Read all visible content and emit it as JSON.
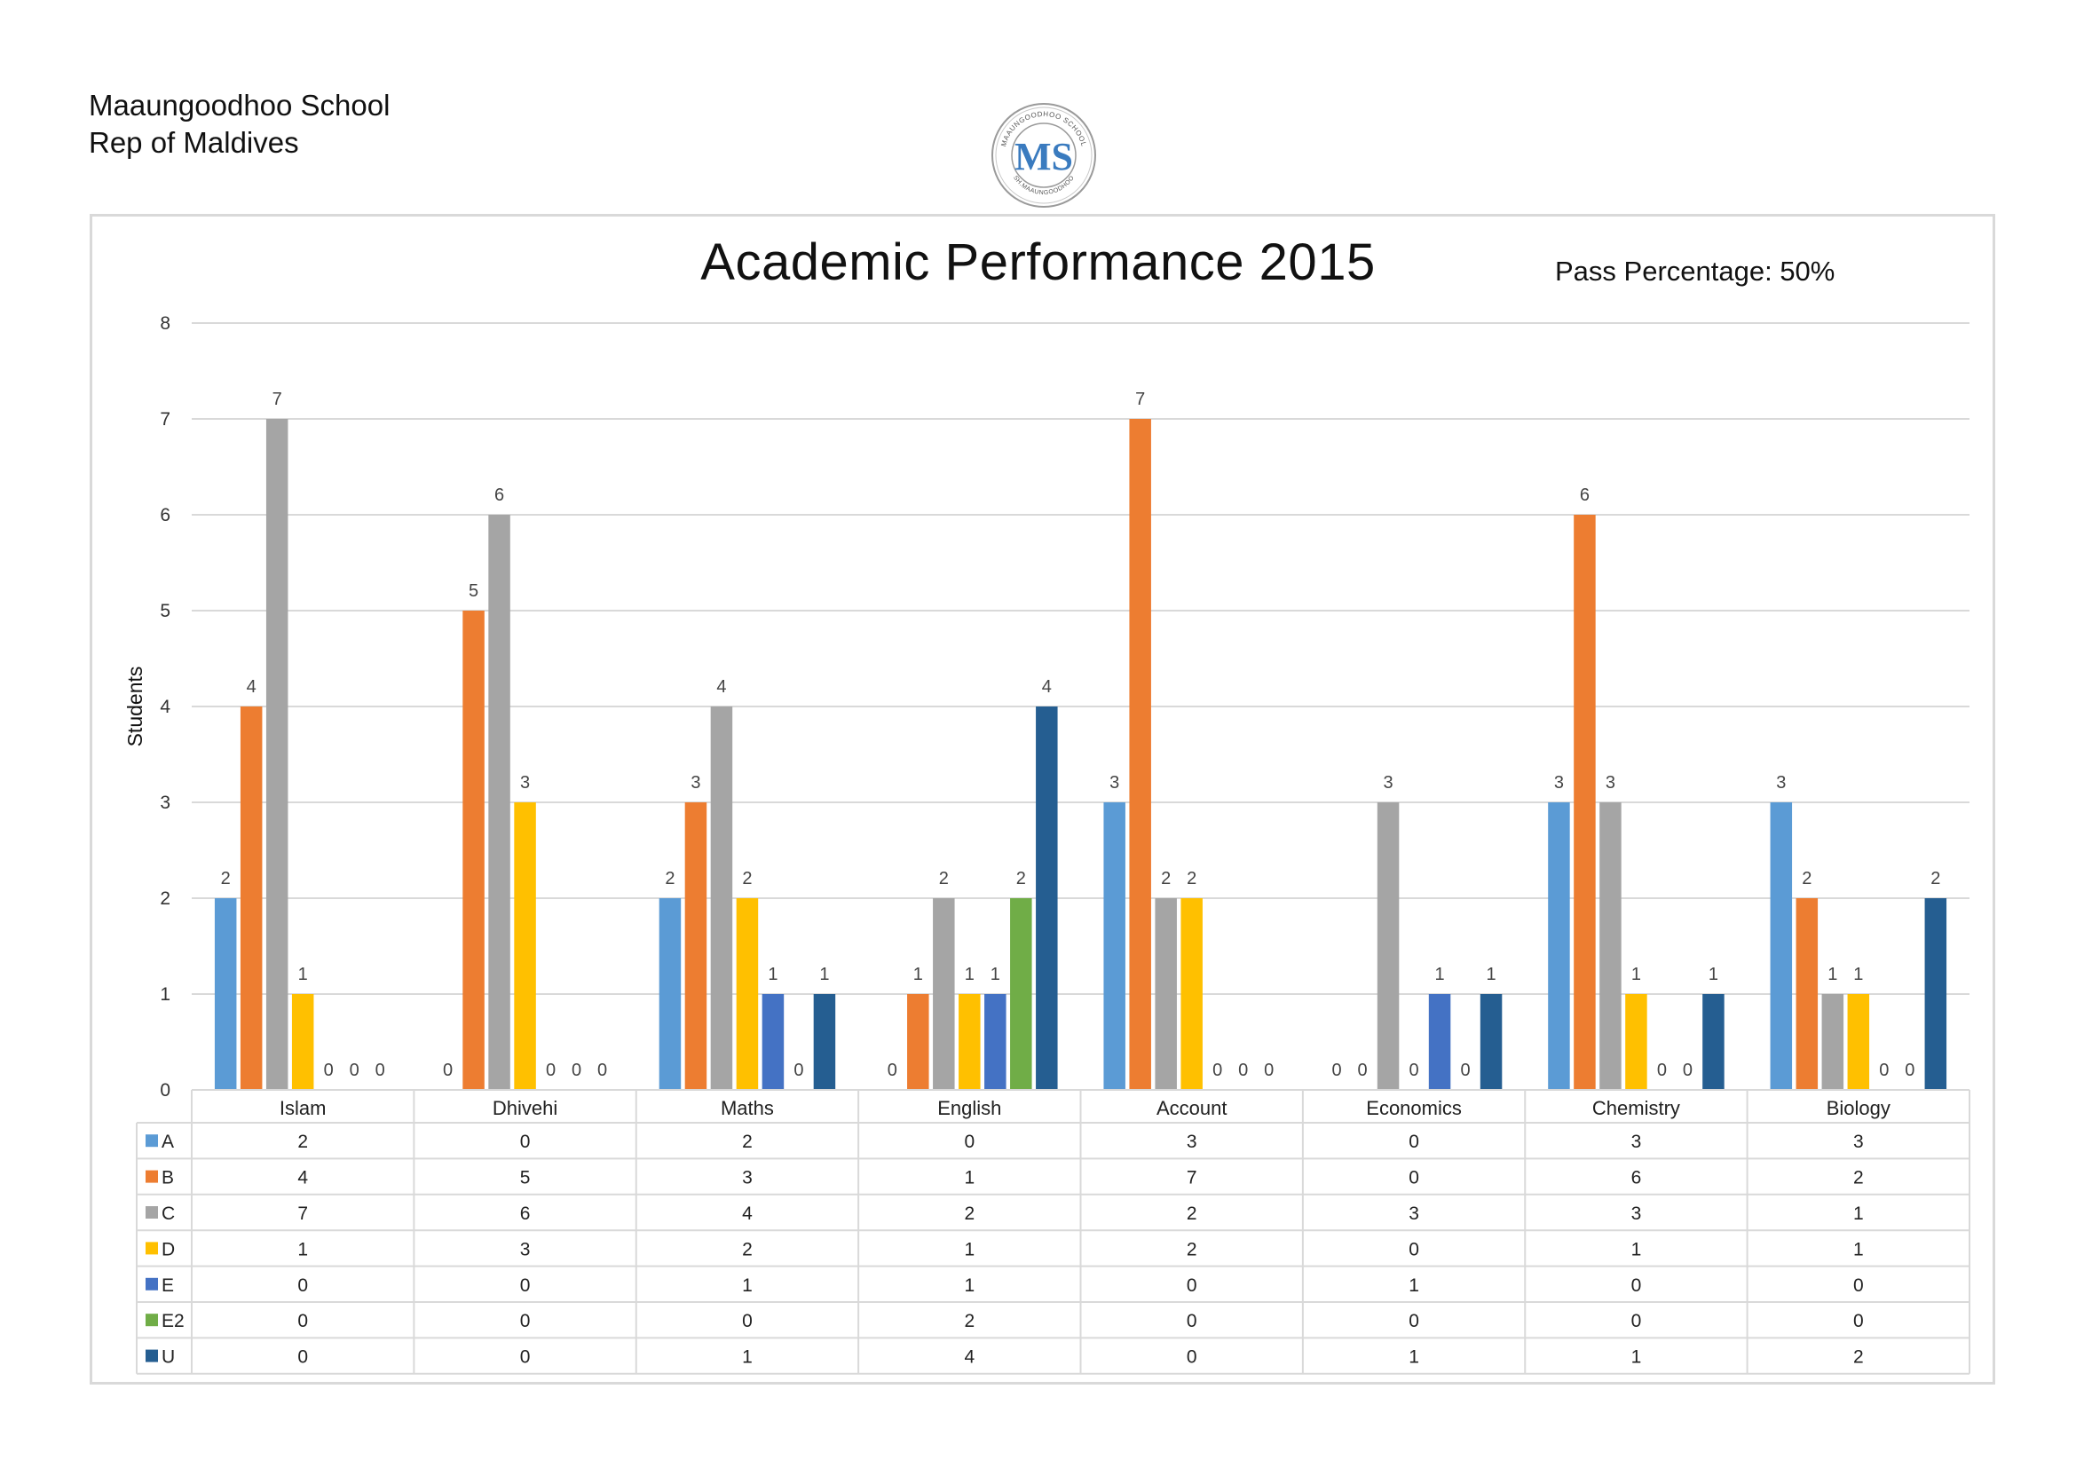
{
  "header": {
    "school_name": "Maaungoodhoo School",
    "country": "Rep of Maldives"
  },
  "logo": {
    "initials": "MS",
    "ring_top_text": "MAAUNGOODHOO SCHOOL",
    "ring_bottom_text": "SH.MAAUNGOODHOO"
  },
  "pass_percentage": "Pass Percentage: 50%",
  "chart_data": {
    "type": "bar",
    "title": "Academic Performance 2015",
    "xlabel": "",
    "ylabel": "Students",
    "ylim": [
      0,
      8
    ],
    "yticks": [
      0,
      1,
      2,
      3,
      4,
      5,
      6,
      7,
      8
    ],
    "grid": true,
    "legend": "data-table",
    "categories": [
      "Islam",
      "Dhivehi",
      "Maths",
      "English",
      "Account",
      "Economics",
      "Chemistry",
      "Biology"
    ],
    "series": [
      {
        "name": "A",
        "color": "#5B9BD5",
        "values": [
          2,
          0,
          2,
          0,
          3,
          0,
          3,
          3
        ]
      },
      {
        "name": "B",
        "color": "#ED7D31",
        "values": [
          4,
          5,
          3,
          1,
          7,
          0,
          6,
          2
        ]
      },
      {
        "name": "C",
        "color": "#A5A5A5",
        "values": [
          7,
          6,
          4,
          2,
          2,
          3,
          3,
          1
        ]
      },
      {
        "name": "D",
        "color": "#FFC000",
        "values": [
          1,
          3,
          2,
          1,
          2,
          0,
          1,
          1
        ]
      },
      {
        "name": "E",
        "color": "#4472C4",
        "values": [
          0,
          0,
          1,
          1,
          0,
          1,
          0,
          0
        ]
      },
      {
        "name": "E2",
        "color": "#70AD47",
        "values": [
          0,
          0,
          0,
          2,
          0,
          0,
          0,
          0
        ]
      },
      {
        "name": "U",
        "color": "#255E91",
        "values": [
          0,
          0,
          1,
          4,
          0,
          1,
          1,
          2
        ]
      }
    ]
  }
}
